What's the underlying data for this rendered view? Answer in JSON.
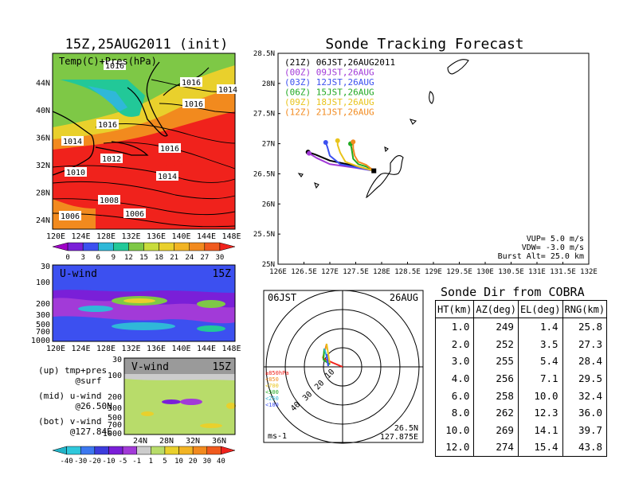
{
  "figure": {
    "left_title": "15Z,25AUG2011 (init)",
    "right_title": "Sonde Tracking Forecast",
    "colors": {
      "ocean_red": "#f0221c",
      "orange": "#f28a1e",
      "yellow": "#e9d02c",
      "land_green": "#7ec846",
      "cyan": "#2fb8d8",
      "blue": "#3c6ff0",
      "purple": "#a23ad8",
      "violet": "#7a1fd8"
    }
  },
  "chart_data": [
    {
      "type": "heatmap",
      "panel": "top-left",
      "label": "Temp(C)+Pres(hPa)",
      "xticks": [
        "120E",
        "124E",
        "128E",
        "132E",
        "136E",
        "140E",
        "144E",
        "148E"
      ],
      "yticks": [
        "24N",
        "28N",
        "32N",
        "36N",
        "40N",
        "44N"
      ],
      "xlim": [
        120,
        150
      ],
      "ylim": [
        22,
        48
      ],
      "isobar_labels": [
        "1016",
        "1016",
        "1014",
        "1016",
        "1016",
        "1014",
        "1012",
        "1016",
        "1010",
        "1014",
        "1008",
        "1006",
        "1006"
      ],
      "colorbar": {
        "ticks": [
          "0",
          "3",
          "6",
          "9",
          "12",
          "15",
          "18",
          "21",
          "24",
          "27",
          "30"
        ],
        "colors": [
          "#a000c8",
          "#7a1fd8",
          "#3c50f0",
          "#2fb8d8",
          "#22c898",
          "#7ec846",
          "#c8dc3c",
          "#e9d02c",
          "#f2b424",
          "#f28a1e",
          "#f05a1e",
          "#f0221c"
        ]
      }
    },
    {
      "type": "heatmap",
      "panel": "mid-left",
      "label": "U-wind",
      "time_label": "15Z",
      "yticks": [
        "30",
        "100",
        "200",
        "300",
        "500",
        "700",
        "1000"
      ],
      "xticks": [
        "120E",
        "124E",
        "128E",
        "132E",
        "136E",
        "140E",
        "144E",
        "148E"
      ]
    },
    {
      "type": "heatmap",
      "panel": "bottom-left",
      "label": "V-wind",
      "time_label": "15Z",
      "yticks": [
        "30",
        "100",
        "200",
        "300",
        "500",
        "700",
        "1000"
      ],
      "xticks": [
        "24N",
        "28N",
        "32N",
        "36N"
      ],
      "colorbar": {
        "ticks": [
          "-40",
          "-30",
          "-20",
          "-10",
          "-5",
          "-1",
          "1",
          "5",
          "10",
          "20",
          "30",
          "40"
        ],
        "colors": [
          "#22b4c8",
          "#2fc8dc",
          "#3c78f0",
          "#3c3cdc",
          "#7a1fd8",
          "#a23ad8",
          "#cccccc",
          "#b8dc6a",
          "#e9d02c",
          "#f2b424",
          "#f28a1e",
          "#f05a1e",
          "#f0221c"
        ]
      }
    },
    {
      "type": "line",
      "panel": "top-right",
      "title": "Sonde Tracking Forecast",
      "xticks": [
        "126E",
        "126.5E",
        "127E",
        "127.5E",
        "128E",
        "128.5E",
        "129E",
        "129.5E",
        "130E",
        "130.5E",
        "131E",
        "131.5E",
        "132E"
      ],
      "yticks": [
        "25N",
        "25.5N",
        "26N",
        "26.5N",
        "27N",
        "27.5N",
        "28N",
        "28.5N"
      ],
      "xlim": [
        126,
        132
      ],
      "ylim": [
        25,
        28.5
      ],
      "launch_point": {
        "lon": 127.85,
        "lat": 26.55
      },
      "legend": [
        {
          "name": "(21Z) 06JST,26AUG2011",
          "color": "#000000"
        },
        {
          "name": "(00Z) 09JST,26AUG",
          "color": "#a23ad8"
        },
        {
          "name": "(03Z) 12JST,26AUG",
          "color": "#3c50f0"
        },
        {
          "name": "(06Z) 15JST,26AUG",
          "color": "#22aa22"
        },
        {
          "name": "(09Z) 18JST,26AUG",
          "color": "#e9c41c"
        },
        {
          "name": "(12Z) 21JST,26AUG",
          "color": "#f28a1e"
        }
      ],
      "series": [
        {
          "color": "#000000",
          "points": [
            [
              127.85,
              26.55
            ],
            [
              127.5,
              26.63
            ],
            [
              127.0,
              26.72
            ],
            [
              126.72,
              26.82
            ],
            [
              126.58,
              26.86
            ]
          ]
        },
        {
          "color": "#a23ad8",
          "points": [
            [
              127.85,
              26.55
            ],
            [
              127.5,
              26.6
            ],
            [
              127.0,
              26.66
            ],
            [
              126.75,
              26.76
            ],
            [
              126.6,
              26.84
            ]
          ]
        },
        {
          "color": "#3c50f0",
          "points": [
            [
              127.85,
              26.55
            ],
            [
              127.55,
              26.6
            ],
            [
              127.2,
              26.66
            ],
            [
              127.0,
              26.8
            ],
            [
              126.95,
              26.95
            ],
            [
              126.92,
              27.02
            ]
          ]
        },
        {
          "color": "#22aa22",
          "points": [
            [
              127.85,
              26.55
            ],
            [
              127.7,
              26.62
            ],
            [
              127.55,
              26.66
            ],
            [
              127.45,
              26.75
            ],
            [
              127.42,
              26.92
            ],
            [
              127.4,
              27.0
            ]
          ]
        },
        {
          "color": "#e9c41c",
          "points": [
            [
              127.85,
              26.55
            ],
            [
              127.55,
              26.62
            ],
            [
              127.3,
              26.7
            ],
            [
              127.2,
              26.85
            ],
            [
              127.15,
              26.98
            ],
            [
              127.15,
              27.05
            ]
          ]
        },
        {
          "color": "#f28a1e",
          "points": [
            [
              127.85,
              26.55
            ],
            [
              127.7,
              26.65
            ],
            [
              127.55,
              26.7
            ],
            [
              127.48,
              26.8
            ],
            [
              127.45,
              26.92
            ],
            [
              127.45,
              27.03
            ]
          ]
        }
      ],
      "annotations": [
        "VUP= 5.0 m/s",
        "VDW= -3.0 m/s",
        "Burst Alt= 25.0 km"
      ]
    },
    {
      "type": "scatter",
      "panel": "polar",
      "label_left": "06JST",
      "label_right": "26AUG",
      "ring_labels": [
        "10",
        "20",
        "30",
        "40"
      ],
      "bottom_right": [
        "26.5N",
        "127.875E"
      ],
      "bottom_left": "ms-1",
      "pressure_legend": [
        {
          "label": "≥850hPa",
          "color": "#f0221c"
        },
        {
          "label": "<850",
          "color": "#f28a1e"
        },
        {
          "label": "<700",
          "color": "#e9c41c"
        },
        {
          "label": "<500",
          "color": "#22aa22"
        },
        {
          "label": "<250",
          "color": "#2fb8d8"
        },
        {
          "label": "<100",
          "color": "#3c50f0"
        }
      ]
    },
    {
      "type": "table",
      "panel": "bottom-right",
      "title": "Sonde Dir from COBRA",
      "columns": [
        "HT(km)",
        "AZ(deg)",
        "EL(deg)",
        "RNG(km)"
      ],
      "rows": [
        [
          "1.0",
          "249",
          "1.4",
          "25.8"
        ],
        [
          "2.0",
          "252",
          "3.5",
          "27.3"
        ],
        [
          "3.0",
          "255",
          "5.4",
          "28.4"
        ],
        [
          "4.0",
          "256",
          "7.1",
          "29.5"
        ],
        [
          "6.0",
          "258",
          "10.0",
          "32.4"
        ],
        [
          "8.0",
          "262",
          "12.3",
          "36.0"
        ],
        [
          "10.0",
          "269",
          "14.1",
          "39.7"
        ],
        [
          "12.0",
          "274",
          "15.4",
          "43.8"
        ]
      ]
    }
  ],
  "notes": {
    "up": "(up) tmp+pres\n       @surf",
    "mid": "(mid) u-wind\n       @26.50N",
    "bot": "(bot) v-wind\n      @127.84E"
  }
}
